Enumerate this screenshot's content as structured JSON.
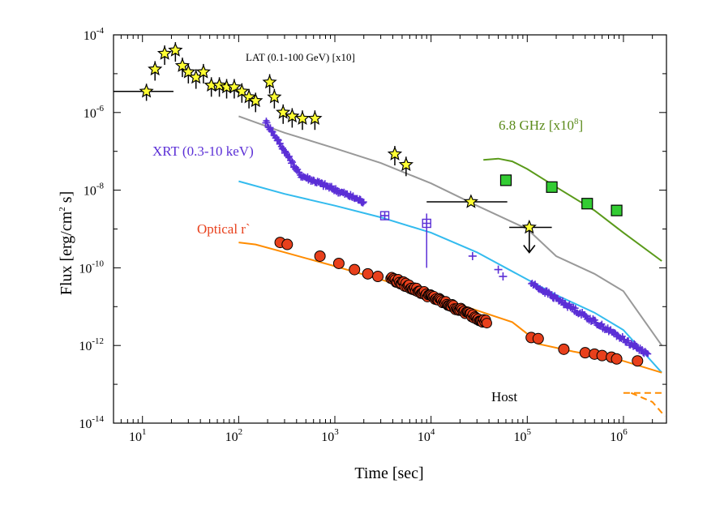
{
  "chart_data": {
    "type": "scatter",
    "xscale": "log",
    "yscale": "log",
    "xlim": [
      5,
      2800000
    ],
    "ylim": [
      1e-14,
      0.0001
    ],
    "xlabel": "Time [sec]",
    "ylabel": "Flux [erg/cm² s]",
    "x_ticks": [
      {
        "base": "10",
        "exp": "1",
        "value": 10
      },
      {
        "base": "10",
        "exp": "2",
        "value": 100
      },
      {
        "base": "10",
        "exp": "3",
        "value": 1000
      },
      {
        "base": "10",
        "exp": "4",
        "value": 10000
      },
      {
        "base": "10",
        "exp": "5",
        "value": 100000
      },
      {
        "base": "10",
        "exp": "6",
        "value": 1000000
      }
    ],
    "y_ticks": [
      {
        "base": "10",
        "exp": "-14",
        "value": 1e-14
      },
      {
        "base": "10",
        "exp": "-12",
        "value": 1e-12
      },
      {
        "base": "10",
        "exp": "-10",
        "value": 1e-10
      },
      {
        "base": "10",
        "exp": "-8",
        "value": 1e-08
      },
      {
        "base": "10",
        "exp": "-6",
        "value": 1e-06
      },
      {
        "base": "10",
        "exp": "-4",
        "value": 0.0001
      }
    ],
    "annotations": [
      {
        "text": "LAT (0.1-100 GeV) [x10]",
        "color": "#000000"
      },
      {
        "text": "XRT (0.3-10 keV)",
        "color": "#5b2fd6"
      },
      {
        "text": "Optical r`",
        "color": "#e8401c"
      },
      {
        "base": "6.8 GHz [x10",
        "exp": "8",
        "suffix": "]",
        "color": "#5a8a1a"
      },
      {
        "text": "Host",
        "color": "#000000"
      }
    ],
    "series": [
      {
        "name": "LAT (0.1-100 GeV) [x10]",
        "marker": "star",
        "color": "#ffff33",
        "edge": "#000000",
        "points": [
          {
            "x": 11,
            "y": 3.5e-06,
            "xerr": [
              5,
              21
            ],
            "yerr": [
              2e-06,
              5.5e-06
            ]
          },
          {
            "x": 13.5,
            "y": 1.3e-05
          },
          {
            "x": 17,
            "y": 3.3e-05
          },
          {
            "x": 22,
            "y": 4e-05
          },
          {
            "x": 26,
            "y": 1.6e-05
          },
          {
            "x": 30,
            "y": 1.1e-05
          },
          {
            "x": 36,
            "y": 8e-06
          },
          {
            "x": 43,
            "y": 1.1e-05
          },
          {
            "x": 52,
            "y": 5e-06
          },
          {
            "x": 63,
            "y": 5e-06
          },
          {
            "x": 75,
            "y": 4.5e-06
          },
          {
            "x": 90,
            "y": 4.5e-06
          },
          {
            "x": 108,
            "y": 3.5e-06
          },
          {
            "x": 128,
            "y": 2.5e-06
          },
          {
            "x": 150,
            "y": 2e-06
          },
          {
            "x": 210,
            "y": 6e-06
          },
          {
            "x": 235,
            "y": 2.5e-06
          },
          {
            "x": 290,
            "y": 1e-06
          },
          {
            "x": 360,
            "y": 8e-07
          },
          {
            "x": 460,
            "y": 7e-07
          },
          {
            "x": 620,
            "y": 7e-07
          },
          {
            "x": 4200,
            "y": 8.5e-08
          },
          {
            "x": 5500,
            "y": 4.5e-08
          },
          {
            "x": 26000,
            "y": 5e-09,
            "xerr": [
              9000,
              62000
            ]
          },
          {
            "x": 105000,
            "y": 1.1e-09,
            "xerr": [
              65000,
              180000
            ],
            "upper_limit": true
          }
        ]
      },
      {
        "name": "XRT (0.3-10 keV)",
        "marker": "plus",
        "color": "#5b2fd6",
        "points": [
          {
            "x": 3300,
            "y": 2.2e-09,
            "boxed": true
          },
          {
            "x": 9000,
            "y": 1.4e-09,
            "boxed": true,
            "yerr": [
              1e-10,
              2.5e-09
            ]
          },
          {
            "x": 27000,
            "y": 2e-10
          },
          {
            "x": 50000,
            "y": 9e-11
          },
          {
            "x": 56000,
            "y": 6e-11
          }
        ],
        "dense_segments": [
          {
            "x_start": 190,
            "x_end": 2000,
            "y_start": 6e-07,
            "y_end": 5e-09
          },
          {
            "x_start": 110000,
            "x_end": 1800000,
            "y_start": 4e-11,
            "y_end": 6e-13
          }
        ]
      },
      {
        "name": "Optical r`",
        "marker": "circle",
        "color": "#e8401c",
        "edge": "#000000",
        "points": [
          {
            "x": 270,
            "y": 4.5e-10
          },
          {
            "x": 320,
            "y": 4e-10
          },
          {
            "x": 700,
            "y": 2e-10
          },
          {
            "x": 1100,
            "y": 1.3e-10
          },
          {
            "x": 1600,
            "y": 9e-11
          },
          {
            "x": 2200,
            "y": 7e-11
          },
          {
            "x": 2800,
            "y": 6e-11
          },
          {
            "x": 110000,
            "y": 1.6e-12
          },
          {
            "x": 130000,
            "y": 1.5e-12
          },
          {
            "x": 240000,
            "y": 8e-13
          },
          {
            "x": 400000,
            "y": 6.5e-13
          },
          {
            "x": 500000,
            "y": 6e-13
          },
          {
            "x": 600000,
            "y": 5.5e-13
          },
          {
            "x": 750000,
            "y": 5e-13
          },
          {
            "x": 850000,
            "y": 4.5e-13
          },
          {
            "x": 1400000,
            "y": 4e-13
          }
        ],
        "dense_segments": [
          {
            "x_start": 3800,
            "x_end": 38000,
            "y_start": 5.5e-11,
            "y_end": 4e-12
          }
        ]
      },
      {
        "name": "6.8 GHz [x10^8]",
        "marker": "square",
        "color": "#33cc33",
        "edge": "#000000",
        "points": [
          {
            "x": 60000,
            "y": 1.8e-08
          },
          {
            "x": 180000,
            "y": 1.2e-08
          },
          {
            "x": 420000,
            "y": 4.5e-09
          },
          {
            "x": 850000,
            "y": 3e-09
          }
        ]
      }
    ],
    "lines": [
      {
        "color": "#999999",
        "points": [
          [
            100,
            8e-07
          ],
          [
            300,
            3e-07
          ],
          [
            1000,
            1.2e-07
          ],
          [
            3000,
            5e-08
          ],
          [
            10000,
            1.5e-08
          ],
          [
            30000,
            4e-09
          ],
          [
            100000,
            1e-09
          ],
          [
            200000,
            2e-10
          ],
          [
            500000,
            7e-11
          ],
          [
            1000000,
            2.5e-11
          ],
          [
            2500000,
            1e-12
          ]
        ]
      },
      {
        "color": "#33bbee",
        "points": [
          [
            100,
            1.7e-08
          ],
          [
            300,
            8e-09
          ],
          [
            1000,
            4e-09
          ],
          [
            3000,
            2e-09
          ],
          [
            10000,
            8e-10
          ],
          [
            30000,
            2.5e-10
          ],
          [
            100000,
            5e-11
          ],
          [
            200000,
            2e-11
          ],
          [
            500000,
            7e-12
          ],
          [
            1000000,
            2.5e-12
          ],
          [
            2500000,
            2e-13
          ]
        ]
      },
      {
        "color": "#ff8c00",
        "points": [
          [
            100,
            4.5e-10
          ],
          [
            150,
            4e-10
          ],
          [
            300,
            2.5e-10
          ],
          [
            1000,
            1.1e-10
          ],
          [
            3000,
            5e-11
          ],
          [
            10000,
            2e-11
          ],
          [
            30000,
            8e-12
          ],
          [
            70000,
            4e-12
          ],
          [
            100000,
            2e-12
          ],
          [
            130000,
            1.1e-12
          ],
          [
            300000,
            7e-13
          ],
          [
            1000000,
            4e-13
          ],
          [
            2500000,
            2e-13
          ]
        ]
      },
      {
        "color": "#ff8c00",
        "dashed": true,
        "points": [
          [
            1000000,
            6e-14
          ],
          [
            2500000,
            6e-14
          ]
        ]
      },
      {
        "color": "#ff8c00",
        "dashed": true,
        "points": [
          [
            1200000,
            6e-14
          ],
          [
            2000000,
            3.5e-14
          ],
          [
            2700000,
            1.5e-14
          ]
        ]
      },
      {
        "color": "#5a9a1a",
        "points": [
          [
            35000,
            6e-08
          ],
          [
            50000,
            6.5e-08
          ],
          [
            70000,
            5.5e-08
          ],
          [
            100000,
            3.5e-08
          ],
          [
            200000,
            1.2e-08
          ],
          [
            500000,
            3e-09
          ],
          [
            1000000,
            8e-10
          ],
          [
            2500000,
            1.5e-10
          ]
        ]
      }
    ]
  }
}
